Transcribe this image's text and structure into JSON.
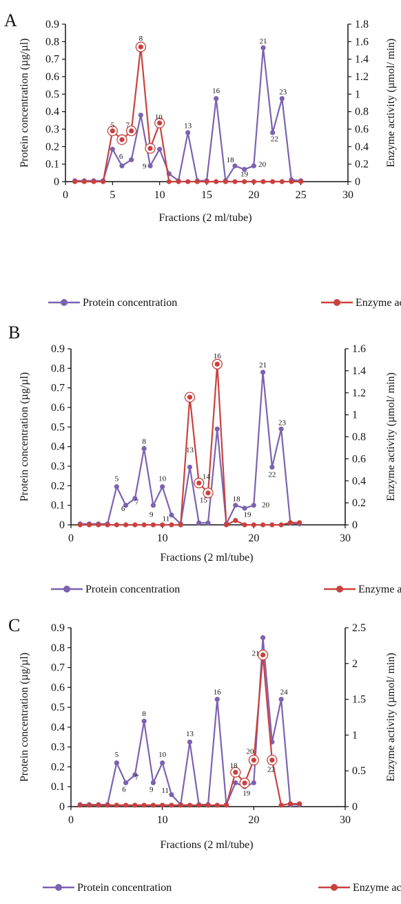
{
  "colors": {
    "protein": "#7b62b0",
    "enzyme": "#c9413f",
    "axis": "#111111"
  },
  "chart_data": [
    {
      "type": "line",
      "panel": "A",
      "xlabel": "Fractions (2 ml/tube)",
      "ylabel": "Protein concentration (µg/µl)",
      "y2label": "Enzyme activity (µmol/ min)",
      "xlim": [
        0,
        30
      ],
      "xticks": [
        "0",
        "5",
        "10",
        "15",
        "20",
        "25",
        "30"
      ],
      "ylim": [
        0,
        0.9
      ],
      "yticks": [
        "0",
        "0.1",
        "0.2",
        "0.3",
        "0.4",
        "0.5",
        "0.6",
        "0.7",
        "0.8",
        "0.9"
      ],
      "y2lim": [
        0,
        1.8
      ],
      "y2ticks": [
        "0",
        "0.2",
        "0.4",
        "0.6",
        "0.8",
        "1",
        "1.2",
        "1.4",
        "1.6",
        "1.8"
      ],
      "legend": "bottom",
      "series": [
        {
          "name": "Protein concentration",
          "axis": "left",
          "x": [
            1,
            2,
            3,
            4,
            5,
            6,
            7,
            8,
            9,
            10,
            11,
            12,
            13,
            14,
            15,
            16,
            17,
            18,
            19,
            20,
            21,
            22,
            23,
            24,
            25
          ],
          "y": [
            0.005,
            0.005,
            0.005,
            0.005,
            0.185,
            0.09,
            0.125,
            0.38,
            0.09,
            0.185,
            0.045,
            0.005,
            0.28,
            0.005,
            0.005,
            0.475,
            0.005,
            0.09,
            0.07,
            0.09,
            0.765,
            0.28,
            0.475,
            0.01,
            0.005
          ]
        },
        {
          "name": "Enzyme activity",
          "axis": "right",
          "x": [
            1,
            2,
            3,
            4,
            5,
            6,
            7,
            8,
            9,
            10,
            11,
            12,
            13,
            14,
            15,
            16,
            17,
            18,
            19,
            20,
            21,
            22,
            23,
            24,
            25
          ],
          "y": [
            0,
            0,
            0,
            0,
            0.58,
            0.48,
            0.58,
            1.54,
            0.38,
            0.67,
            0,
            0,
            0,
            0,
            0,
            0,
            0,
            0,
            0,
            0,
            0,
            0,
            0,
            0,
            0
          ]
        }
      ],
      "circled": [
        5,
        6,
        7,
        8,
        9,
        10
      ],
      "annotations": [
        {
          "text": "5",
          "x": 5,
          "y": 0.31
        },
        {
          "text": "6",
          "x": 5.9,
          "y": 0.13
        },
        {
          "text": "7",
          "x": 6.6,
          "y": 0.31
        },
        {
          "text": "8",
          "x": 8,
          "y": 0.805
        },
        {
          "text": "9",
          "x": 8.4,
          "y": 0.075
        },
        {
          "text": "10",
          "x": 9.9,
          "y": 0.355
        },
        {
          "text": "13",
          "x": 13,
          "y": 0.305
        },
        {
          "text": "16",
          "x": 16,
          "y": 0.505
        },
        {
          "text": "18",
          "x": 17.5,
          "y": 0.11
        },
        {
          "text": "19",
          "x": 19,
          "y": 0.03
        },
        {
          "text": "20",
          "x": 20.9,
          "y": 0.085
        },
        {
          "text": "21",
          "x": 21,
          "y": 0.79
        },
        {
          "text": "22",
          "x": 22.2,
          "y": 0.23
        },
        {
          "text": "23",
          "x": 23.1,
          "y": 0.5
        }
      ]
    },
    {
      "type": "line",
      "panel": "B",
      "xlabel": "Fractions (2 ml/tube)",
      "ylabel": "Protein concentration (µg/µl)",
      "y2label": "Enzyme activity (µmol/ min)",
      "xlim": [
        0,
        30
      ],
      "xticks": [
        "0",
        "10",
        "20",
        "30"
      ],
      "ylim": [
        0,
        0.9
      ],
      "yticks": [
        "0",
        "0.1",
        "0.2",
        "0.3",
        "0.4",
        "0.5",
        "0.6",
        "0.7",
        "0.8",
        "0.9"
      ],
      "y2lim": [
        0,
        1.6
      ],
      "y2ticks": [
        "0",
        "0.2",
        "0.4",
        "0.6",
        "0.8",
        "1",
        "1.2",
        "1.4",
        "1.6"
      ],
      "legend": "bottom",
      "series": [
        {
          "name": "Protein concentration",
          "axis": "left",
          "x": [
            1,
            2,
            3,
            4,
            5,
            6,
            7,
            8,
            9,
            10,
            11,
            12,
            13,
            14,
            15,
            16,
            17,
            18,
            19,
            20,
            21,
            22,
            23,
            24,
            25
          ],
          "y": [
            0.005,
            0.005,
            0.005,
            0.005,
            0.195,
            0.1,
            0.135,
            0.39,
            0.1,
            0.195,
            0.05,
            0.005,
            0.295,
            0.01,
            0.01,
            0.49,
            0.005,
            0.1,
            0.085,
            0.1,
            0.78,
            0.295,
            0.49,
            0.01,
            0.005
          ]
        },
        {
          "name": "Enzyme activity",
          "axis": "right",
          "x": [
            1,
            2,
            3,
            4,
            5,
            6,
            7,
            8,
            9,
            10,
            11,
            12,
            13,
            14,
            15,
            16,
            17,
            18,
            19,
            20,
            21,
            22,
            23,
            24,
            25
          ],
          "y": [
            0,
            0,
            0,
            0,
            0,
            0,
            0,
            0,
            0,
            0,
            0,
            0,
            1.16,
            0.38,
            0.29,
            1.46,
            0,
            0.04,
            0,
            0,
            0,
            0,
            0,
            0.02,
            0.02
          ]
        }
      ],
      "circled": [
        13,
        14,
        15,
        16
      ],
      "annotations": [
        {
          "text": "5",
          "x": 5,
          "y": 0.225
        },
        {
          "text": "6",
          "x": 5.7,
          "y": 0.07
        },
        {
          "text": "7",
          "x": 7.2,
          "y": 0.105
        },
        {
          "text": "8",
          "x": 8,
          "y": 0.415
        },
        {
          "text": "9",
          "x": 8.8,
          "y": 0.04
        },
        {
          "text": "10",
          "x": 10,
          "y": 0.225
        },
        {
          "text": "11",
          "x": 10.4,
          "y": 0.02
        },
        {
          "text": "13",
          "x": 13,
          "y": 0.37
        },
        {
          "text": "14",
          "x": 14.8,
          "y": 0.235
        },
        {
          "text": "15",
          "x": 14.5,
          "y": 0.115
        },
        {
          "text": "16",
          "x": 16,
          "y": 0.85
        },
        {
          "text": "18",
          "x": 18.1,
          "y": 0.12
        },
        {
          "text": "19",
          "x": 19.3,
          "y": 0.04
        },
        {
          "text": "20",
          "x": 21.3,
          "y": 0.09
        },
        {
          "text": "21",
          "x": 21,
          "y": 0.805
        },
        {
          "text": "22",
          "x": 22,
          "y": 0.245
        },
        {
          "text": "23",
          "x": 23.1,
          "y": 0.51
        }
      ]
    },
    {
      "type": "line",
      "panel": "C",
      "xlabel": "Fractions (2 ml/tube)",
      "ylabel": "Protein concentration (µg/µl)",
      "y2label": "Enzyme activity (µmol/ min)",
      "xlim": [
        0,
        30
      ],
      "xticks": [
        "0",
        "10",
        "20",
        "30"
      ],
      "ylim": [
        0,
        0.9
      ],
      "yticks": [
        "0",
        "0.1",
        "0.2",
        "0.3",
        "0.4",
        "0.5",
        "0.6",
        "0.7",
        "0.8",
        "0.9"
      ],
      "y2lim": [
        0,
        2.5
      ],
      "y2ticks": [
        "0",
        "0.5",
        "1",
        "1.5",
        "2",
        "2.5"
      ],
      "legend": "bottom",
      "series": [
        {
          "name": "Protein concentration",
          "axis": "left",
          "x": [
            1,
            2,
            3,
            4,
            5,
            6,
            7,
            8,
            9,
            10,
            11,
            12,
            13,
            14,
            15,
            16,
            17,
            18,
            19,
            20,
            21,
            22,
            23,
            24,
            25
          ],
          "y": [
            0.01,
            0.01,
            0.01,
            0.01,
            0.22,
            0.12,
            0.16,
            0.43,
            0.12,
            0.22,
            0.06,
            0.01,
            0.325,
            0.01,
            0.01,
            0.54,
            0.01,
            0.12,
            0.1,
            0.12,
            0.85,
            0.325,
            0.54,
            0.01,
            0.01
          ]
        },
        {
          "name": "Enzyme activity",
          "axis": "right",
          "x": [
            1,
            2,
            3,
            4,
            5,
            6,
            7,
            8,
            9,
            10,
            11,
            12,
            13,
            14,
            15,
            16,
            17,
            18,
            19,
            20,
            21,
            22,
            23,
            24,
            25
          ],
          "y": [
            0.02,
            0.02,
            0.02,
            0.02,
            0.02,
            0.02,
            0.02,
            0.02,
            0.02,
            0.02,
            0.02,
            0.02,
            0.02,
            0.02,
            0.02,
            0.02,
            0.02,
            0.48,
            0.33,
            0.65,
            2.12,
            0.65,
            0.02,
            0.04,
            0.04
          ]
        }
      ],
      "circled": [
        18,
        19,
        20,
        21,
        22
      ],
      "annotations": [
        {
          "text": "5",
          "x": 5,
          "y": 0.25
        },
        {
          "text": "6",
          "x": 5.8,
          "y": 0.075
        },
        {
          "text": "7",
          "x": 7.2,
          "y": 0.135
        },
        {
          "text": "8",
          "x": 8,
          "y": 0.455
        },
        {
          "text": "9",
          "x": 8.8,
          "y": 0.075
        },
        {
          "text": "10",
          "x": 10,
          "y": 0.25
        },
        {
          "text": "11",
          "x": 10.3,
          "y": 0.07
        },
        {
          "text": "13",
          "x": 13,
          "y": 0.355
        },
        {
          "text": "16",
          "x": 16,
          "y": 0.565
        },
        {
          "text": "18",
          "x": 17.8,
          "y": 0.195
        },
        {
          "text": "19",
          "x": 19.2,
          "y": 0.055
        },
        {
          "text": "20",
          "x": 19.6,
          "y": 0.265
        },
        {
          "text": "21",
          "x": 20.2,
          "y": 0.76
        },
        {
          "text": "22",
          "x": 21.9,
          "y": 0.175
        },
        {
          "text": "24",
          "x": 23.3,
          "y": 0.565
        }
      ]
    }
  ]
}
